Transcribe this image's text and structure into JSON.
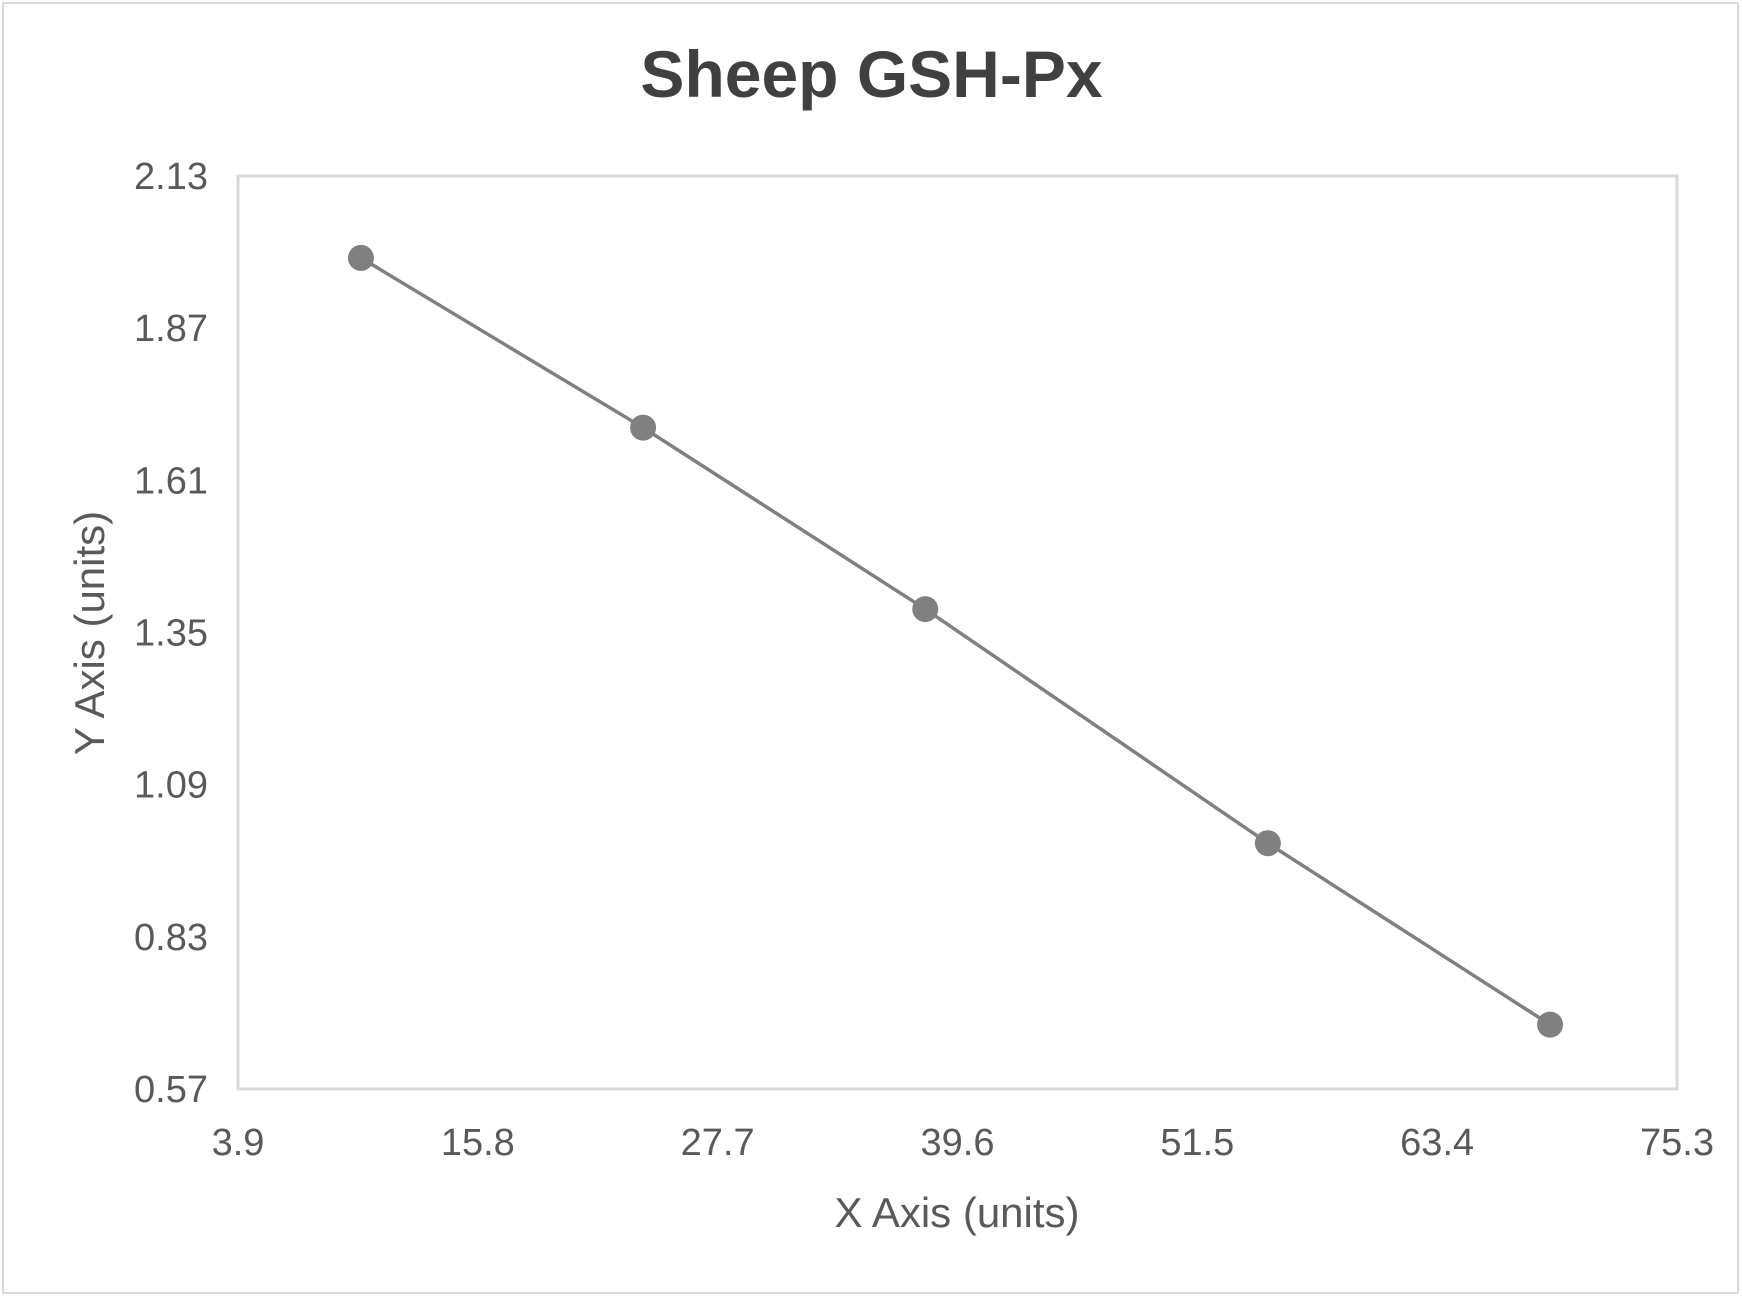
{
  "chart_data": {
    "type": "scatter",
    "title": "Sheep GSH-Px",
    "xlabel": "X Axis (units)",
    "ylabel": "Y Axis (units)",
    "xlim": [
      3.9,
      75.3
    ],
    "ylim": [
      0.57,
      2.13
    ],
    "x_ticks": [
      "3.9",
      "15.8",
      "27.7",
      "39.6",
      "51.5",
      "63.4",
      "75.3"
    ],
    "y_ticks": [
      "2.13",
      "1.87",
      "1.61",
      "1.35",
      "1.09",
      "0.83",
      "0.57"
    ],
    "grid": false,
    "legend": null,
    "series": [
      {
        "name": "Sheep GSH-Px",
        "mode": "lines+markers",
        "color": "#808080",
        "x": [
          10.0,
          24.0,
          38.0,
          55.0,
          69.0
        ],
        "y": [
          1.99,
          1.7,
          1.39,
          0.99,
          0.68
        ]
      }
    ]
  },
  "colors": {
    "series": "#808080",
    "frame_border": "#d9d9d9",
    "plot_border": "#d9d9d9",
    "title_text": "#404040",
    "axis_text": "#595959"
  }
}
